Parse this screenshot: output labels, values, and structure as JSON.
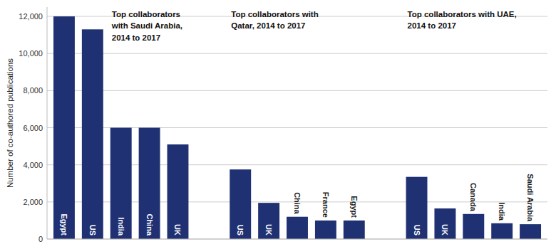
{
  "chart_data": {
    "type": "bar",
    "ylabel": "Number of co-authored publications",
    "categories": [
      "Egypt",
      "US",
      "India",
      "China",
      "UK",
      "US",
      "UK",
      "China",
      "France",
      "Egypt",
      "US",
      "UK",
      "Canada",
      "India",
      "Saudi Arabia"
    ],
    "values": [
      12000,
      11300,
      6000,
      6000,
      5100,
      3750,
      1950,
      1200,
      1000,
      1000,
      3350,
      1650,
      1350,
      850,
      800
    ],
    "color": "#1f3172",
    "ylim": [
      0,
      12500
    ],
    "yticks": [
      0,
      {
        "value": 2000,
        "label": "2,000"
      },
      {
        "value": 4000,
        "label": "4,000"
      },
      {
        "value": 6000,
        "label": "6,000"
      },
      {
        "value": 8000,
        "label": "8,000"
      },
      {
        "value": 10000,
        "label": "10,000"
      },
      {
        "value": 12000,
        "label": "12,000"
      }
    ],
    "grid": true,
    "annotations": [
      "Top collaborators\nwith Saudi Arabia,\n2014 to 2017",
      "Top collaborators with\nQatar, 2014 to 2017",
      "Top collaborators with UAE,\n2014 to 2017"
    ]
  }
}
